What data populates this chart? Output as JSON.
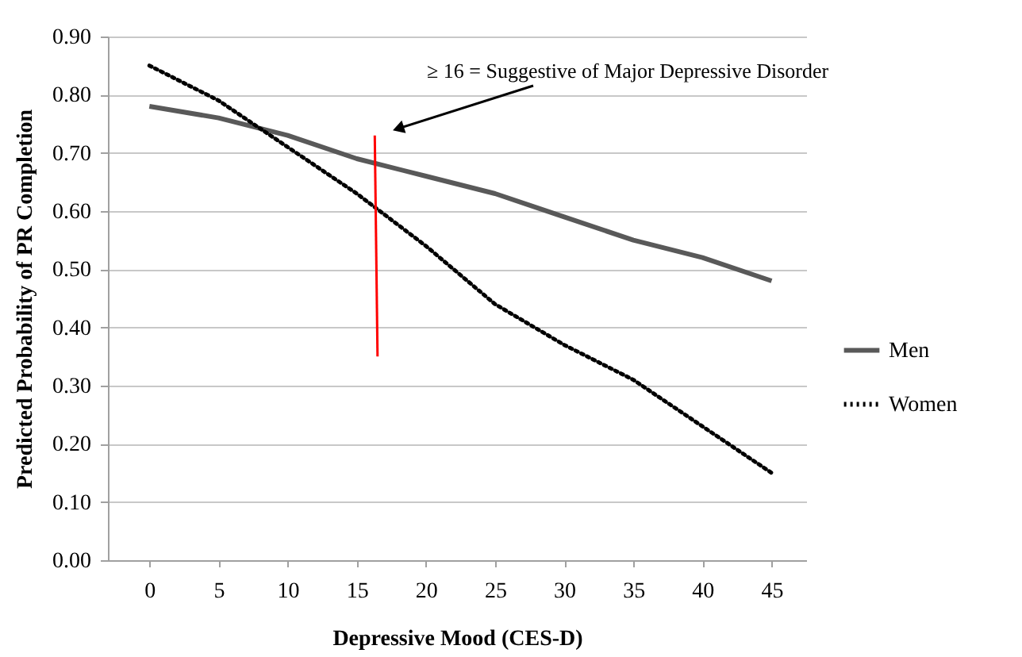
{
  "chart_data": {
    "type": "line",
    "xlabel": "Depressive Mood (CES-D)",
    "ylabel": "Predicted Probability of PR Completion",
    "x": [
      0,
      5,
      10,
      15,
      20,
      25,
      30,
      35,
      40,
      45
    ],
    "series": [
      {
        "name": "Men",
        "color": "#595959",
        "line_style": "solid",
        "values": [
          0.78,
          0.76,
          0.73,
          0.69,
          0.66,
          0.63,
          0.59,
          0.55,
          0.52,
          0.48
        ]
      },
      {
        "name": "Women",
        "color": "#000000",
        "line_style": "dotted",
        "values": [
          0.85,
          0.79,
          0.71,
          0.63,
          0.54,
          0.44,
          0.37,
          0.31,
          0.23,
          0.15
        ]
      },
      {
        "type": "line",
        "color": "#ff0000",
        "line_style": "solid",
        "x": [
          16.3,
          16.5
        ],
        "values": [
          0.73,
          0.35
        ]
      }
    ],
    "annotations": [
      "≥ 16 = Suggestive of Major Depressive Disorder"
    ],
    "xlim": [
      -3,
      47.5
    ],
    "xticks": [
      0,
      5,
      10,
      15,
      20,
      25,
      30,
      35,
      40,
      45
    ],
    "ylim": [
      0,
      0.9
    ],
    "yticks": [
      {
        "value": 0,
        "label": "0.00"
      },
      {
        "value": 0.1,
        "label": "0.10"
      },
      {
        "value": 0.2,
        "label": "0.20"
      },
      {
        "value": 0.3,
        "label": "0.30"
      },
      {
        "value": 0.4,
        "label": "0.40"
      },
      {
        "value": 0.5,
        "label": "0.50"
      },
      {
        "value": 0.6,
        "label": "0.60"
      },
      {
        "value": 0.7,
        "label": "0.70"
      },
      {
        "value": 0.8,
        "label": "0.80"
      },
      {
        "value": 0.9,
        "label": "0.90"
      }
    ],
    "grid": "y",
    "legend": "right",
    "marker": "none"
  }
}
